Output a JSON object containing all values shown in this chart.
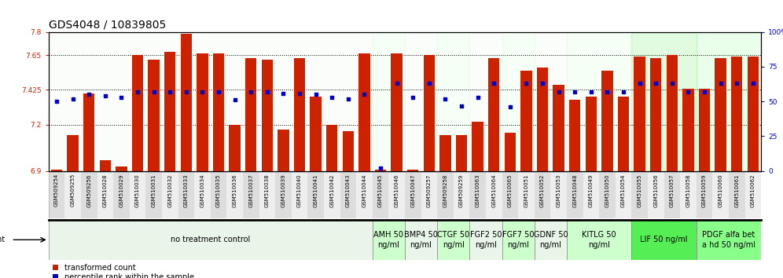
{
  "title": "GDS4048 / 10839805",
  "samples": [
    "GSM509254",
    "GSM509255",
    "GSM509256",
    "GSM510028",
    "GSM510029",
    "GSM510030",
    "GSM510031",
    "GSM510032",
    "GSM510033",
    "GSM510034",
    "GSM510035",
    "GSM510036",
    "GSM510037",
    "GSM510038",
    "GSM510039",
    "GSM510040",
    "GSM510041",
    "GSM510042",
    "GSM510043",
    "GSM510044",
    "GSM510045",
    "GSM510046",
    "GSM510047",
    "GSM509257",
    "GSM509258",
    "GSM509259",
    "GSM510063",
    "GSM510064",
    "GSM510065",
    "GSM510051",
    "GSM510052",
    "GSM510053",
    "GSM510048",
    "GSM510049",
    "GSM510050",
    "GSM510054",
    "GSM510055",
    "GSM510056",
    "GSM510057",
    "GSM510058",
    "GSM510059",
    "GSM510060",
    "GSM510061",
    "GSM510062"
  ],
  "bar_values": [
    6.91,
    7.13,
    7.4,
    6.97,
    6.93,
    7.65,
    7.62,
    7.67,
    7.79,
    7.66,
    7.66,
    7.2,
    7.63,
    7.62,
    7.17,
    7.63,
    7.38,
    7.2,
    7.16,
    7.66,
    6.91,
    7.66,
    6.91,
    7.65,
    7.13,
    7.13,
    7.22,
    7.63,
    7.15,
    7.55,
    7.57,
    7.46,
    7.36,
    7.38,
    7.55,
    7.38,
    7.64,
    7.63,
    7.65,
    7.43,
    7.43,
    7.63,
    7.64,
    7.64
  ],
  "percentile_values": [
    50,
    52,
    55,
    54,
    53,
    57,
    57,
    57,
    57,
    57,
    57,
    51,
    57,
    57,
    56,
    56,
    55,
    53,
    52,
    55,
    2,
    63,
    53,
    63,
    52,
    47,
    53,
    63,
    46,
    63,
    63,
    57,
    57,
    57,
    57,
    57,
    63,
    63,
    63,
    57,
    57,
    63,
    63,
    63
  ],
  "agent_groups": [
    {
      "label": "no treatment control",
      "start": 0,
      "end": 20,
      "color": "#e8f5e8"
    },
    {
      "label": "AMH 50\nng/ml",
      "start": 20,
      "end": 22,
      "color": "#ccffcc"
    },
    {
      "label": "BMP4 50\nng/ml",
      "start": 22,
      "end": 24,
      "color": "#e8f5e8"
    },
    {
      "label": "CTGF 50\nng/ml",
      "start": 24,
      "end": 26,
      "color": "#ccffcc"
    },
    {
      "label": "FGF2 50\nng/ml",
      "start": 26,
      "end": 28,
      "color": "#e8f5e8"
    },
    {
      "label": "FGF7 50\nng/ml",
      "start": 28,
      "end": 30,
      "color": "#ccffcc"
    },
    {
      "label": "GDNF 50\nng/ml",
      "start": 30,
      "end": 32,
      "color": "#e8f5e8"
    },
    {
      "label": "KITLG 50\nng/ml",
      "start": 32,
      "end": 36,
      "color": "#ccffcc"
    },
    {
      "label": "LIF 50 ng/ml",
      "start": 36,
      "end": 40,
      "color": "#55ee55"
    },
    {
      "label": "PDGF alfa bet\na hd 50 ng/ml",
      "start": 40,
      "end": 44,
      "color": "#88ff88"
    }
  ],
  "ymin": 6.9,
  "ymax": 7.8,
  "yticks_left": [
    6.9,
    7.2,
    7.425,
    7.65,
    7.8
  ],
  "ytick_labels_left": [
    "6.9",
    "7.2",
    "7.425",
    "7.65",
    "7.8"
  ],
  "yticks_right_pct": [
    0,
    25,
    50,
    75,
    100
  ],
  "ytick_labels_right": [
    "0",
    "25",
    "50",
    "75",
    "100%"
  ],
  "bar_color": "#cc2200",
  "dot_color": "#0000cc",
  "title_fontsize": 10,
  "tick_fontsize": 6.5,
  "sample_fontsize": 5,
  "agent_fontsize": 7
}
